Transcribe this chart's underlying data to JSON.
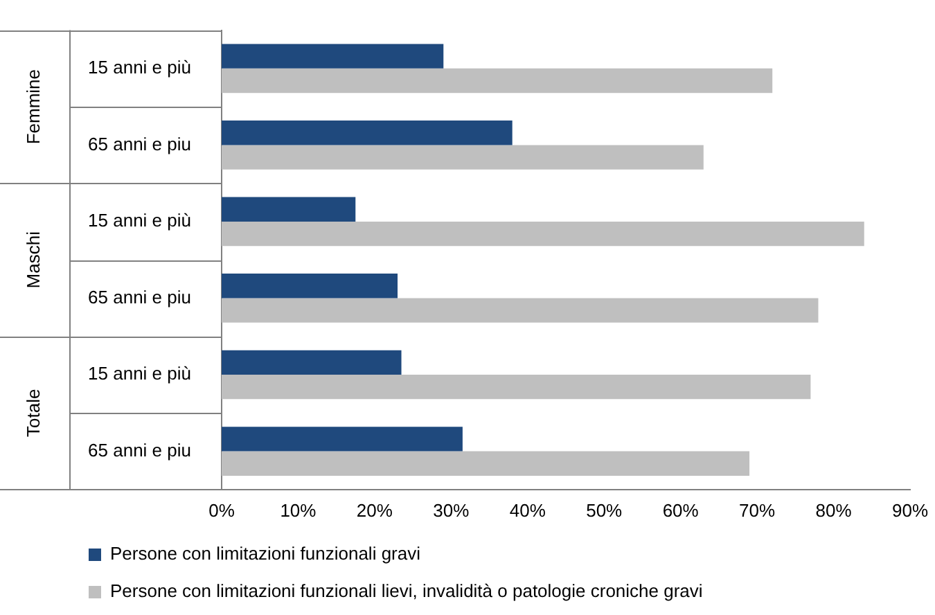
{
  "chart_data": {
    "type": "bar",
    "orientation": "horizontal",
    "categories": [
      "15 anni e più",
      "65 anni e piu",
      "15 anni e più",
      "65 anni e piu",
      "15 anni e più",
      "65 anni e piu"
    ],
    "annotations": [
      "Femmine",
      "Maschi",
      "Totale"
    ],
    "series": [
      {
        "name": "Persone con limitazioni funzionali gravi",
        "color": "#1f497d",
        "values": [
          29,
          38,
          17.5,
          23,
          23.5,
          31.5
        ]
      },
      {
        "name": "Persone con limitazioni funzionali lievi, invalidità o patologie croniche gravi",
        "color": "#bfbfbf",
        "values": [
          72,
          63,
          84,
          78,
          77,
          69
        ]
      }
    ],
    "xlim": [
      0,
      90
    ],
    "xticks": [
      {
        "value": 0,
        "label": "0%"
      },
      {
        "value": 10,
        "label": "10%"
      },
      {
        "value": 20,
        "label": "20%"
      },
      {
        "value": 30,
        "label": "30%"
      },
      {
        "value": 40,
        "label": "40%"
      },
      {
        "value": 50,
        "label": "50%"
      },
      {
        "value": 60,
        "label": "60%"
      },
      {
        "value": 70,
        "label": "70%"
      },
      {
        "value": 80,
        "label": "80%"
      },
      {
        "value": 90,
        "label": "90%"
      }
    ],
    "grid": false,
    "legend": "bottom"
  }
}
